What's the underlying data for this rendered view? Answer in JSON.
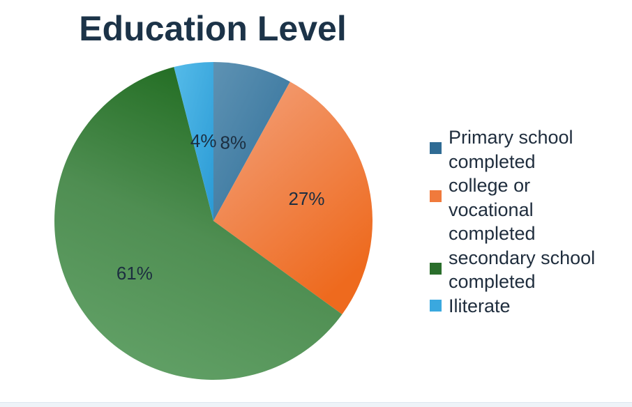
{
  "chart_data": {
    "type": "pie",
    "title": "Education Level",
    "slices": [
      {
        "label": "Primary school completed",
        "display_label": "Primary school\ncompleted",
        "value": 8,
        "value_label": "8%",
        "color": "#3f7ea6"
      },
      {
        "label": "college or vocational completed",
        "display_label": "college or\nvocational\ncompleted",
        "value": 27,
        "value_label": "27%",
        "color": "#f07a3c"
      },
      {
        "label": "secondary school completed",
        "display_label": "secondary school\ncompleted",
        "value": 61,
        "value_label": "61%",
        "color": "#2f7a30"
      },
      {
        "label": "Iliterate",
        "display_label": "Iliterate",
        "value": 4,
        "value_label": "4%",
        "color": "#3aa8df"
      }
    ],
    "legend_position": "right",
    "start_angle": "top, clockwise"
  }
}
